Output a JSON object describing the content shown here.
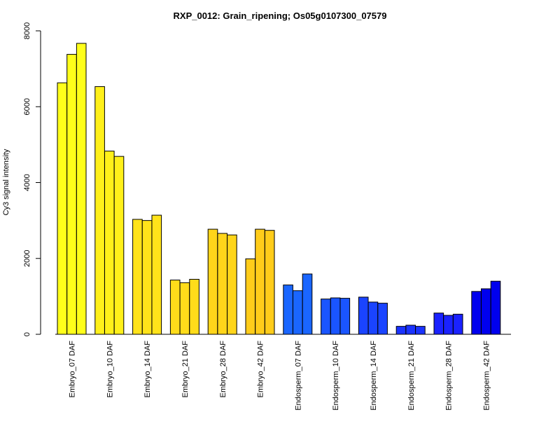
{
  "chart_data": {
    "type": "bar",
    "title": "RXP_0012: Grain_ripening; Os05g0107300_07579",
    "xlabel": "",
    "ylabel": "Cy3 signal intensity",
    "ylim": [
      0,
      8000
    ],
    "yticks": [
      0,
      2000,
      4000,
      6000,
      8000
    ],
    "grid": false,
    "legend": "none",
    "categories": [
      "Embryo_07 DAF",
      "Embryo_10 DAF",
      "Embryo_14 DAF",
      "Embryo_21 DAF",
      "Embryo_28 DAF",
      "Embryo_42 DAF",
      "Endosperm_07 DAF",
      "Endosperm_10 DAF",
      "Endosperm_14 DAF",
      "Endosperm_21 DAF",
      "Endosperm_28 DAF",
      "Endosperm_42 DAF"
    ],
    "category_colors": [
      "#ffff1a",
      "#fff01a",
      "#ffe31a",
      "#ffdc1a",
      "#ffd51a",
      "#ffcc1a",
      "#1a66ff",
      "#1a55ff",
      "#1a44ff",
      "#1a33ff",
      "#1a22ff",
      "#0000ee"
    ],
    "replicates": [
      [
        6630,
        7380,
        7670
      ],
      [
        6530,
        4830,
        4690
      ],
      [
        3030,
        3000,
        3140
      ],
      [
        1430,
        1360,
        1450
      ],
      [
        2770,
        2660,
        2620
      ],
      [
        1990,
        2770,
        2740
      ],
      [
        1300,
        1150,
        1590
      ],
      [
        930,
        960,
        950
      ],
      [
        980,
        850,
        820
      ],
      [
        210,
        240,
        210
      ],
      [
        560,
        500,
        530
      ],
      [
        1130,
        1200,
        1400
      ]
    ]
  }
}
